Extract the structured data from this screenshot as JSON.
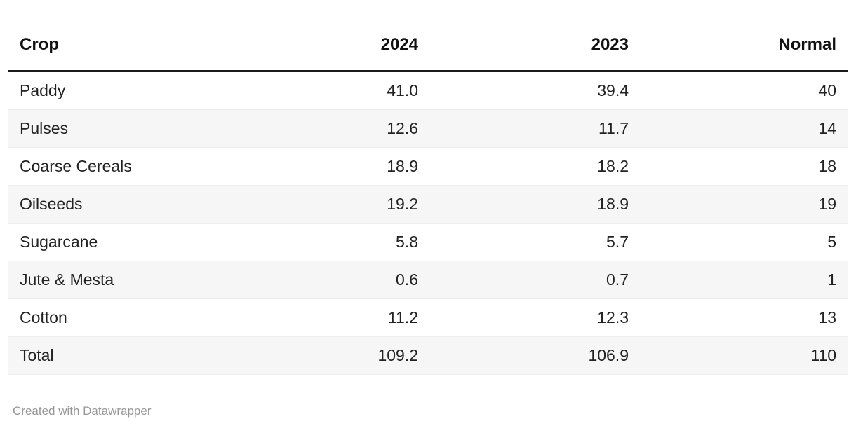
{
  "chart_data": {
    "type": "table",
    "columns": [
      "Crop",
      "2024",
      "2023",
      "Normal"
    ],
    "rows": [
      [
        "Paddy",
        "41.0",
        "39.4",
        "40"
      ],
      [
        "Pulses",
        "12.6",
        "11.7",
        "14"
      ],
      [
        "Coarse Cereals",
        "18.9",
        "18.2",
        "18"
      ],
      [
        "Oilseeds",
        "19.2",
        "18.9",
        "19"
      ],
      [
        "Sugarcane",
        "5.8",
        "5.7",
        "5"
      ],
      [
        "Jute & Mesta",
        "0.6",
        "0.7",
        "1"
      ],
      [
        "Cotton",
        "11.2",
        "12.3",
        "13"
      ],
      [
        "Total",
        "109.2",
        "106.9",
        "110"
      ]
    ],
    "layout": {
      "numeric_columns_right_aligned": true,
      "alternating_row_shading": true,
      "header_rule": "thick-black"
    }
  },
  "footer": {
    "credit": "Created with Datawrapper"
  },
  "colors": {
    "header_border": "#1a1a1a",
    "row_alt_background": "#f6f6f6",
    "body_text": "#222222",
    "credit_text": "#979797"
  }
}
